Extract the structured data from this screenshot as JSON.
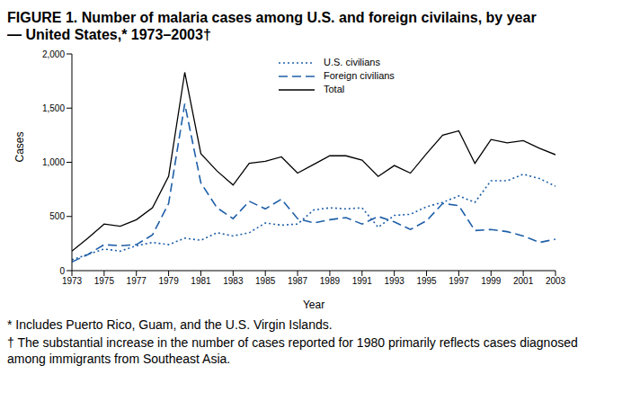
{
  "chart_data": {
    "type": "line",
    "title": "FIGURE 1. Number of malaria cases among U.S. and foreign civilains, by year — United States,* 1973–2003†",
    "x_label": "Year",
    "y_label": "Cases",
    "x": [
      1973,
      1974,
      1975,
      1976,
      1977,
      1978,
      1979,
      1980,
      1981,
      1982,
      1983,
      1984,
      1985,
      1986,
      1987,
      1988,
      1989,
      1990,
      1991,
      1992,
      1993,
      1994,
      1995,
      1996,
      1997,
      1998,
      1999,
      2000,
      2001,
      2002,
      2003
    ],
    "series": [
      {
        "name": "U.S. civilians",
        "color": "#1f5fa8",
        "line_style": "dotted",
        "values": [
          100,
          150,
          200,
          180,
          230,
          260,
          240,
          300,
          280,
          350,
          320,
          350,
          440,
          420,
          430,
          560,
          580,
          570,
          580,
          400,
          510,
          520,
          590,
          630,
          690,
          630,
          830,
          830,
          890,
          850,
          780
        ]
      },
      {
        "name": "Foreign civilians",
        "color": "#1f5fa8",
        "line_style": "dashed",
        "values": [
          80,
          150,
          240,
          230,
          240,
          330,
          620,
          1540,
          810,
          580,
          480,
          640,
          570,
          660,
          480,
          440,
          470,
          490,
          430,
          500,
          450,
          380,
          460,
          620,
          600,
          370,
          380,
          360,
          320,
          260,
          290
        ]
      },
      {
        "name": "Total",
        "color": "#000000",
        "line_style": "solid",
        "values": [
          180,
          300,
          430,
          410,
          470,
          580,
          870,
          1830,
          1080,
          920,
          790,
          990,
          1010,
          1050,
          900,
          980,
          1060,
          1060,
          1020,
          870,
          970,
          900,
          1080,
          1250,
          1290,
          990,
          1210,
          1180,
          1200,
          1130,
          1070
        ]
      }
    ],
    "xlim": [
      1973,
      2003
    ],
    "xticks": [
      1973,
      1975,
      1977,
      1979,
      1981,
      1983,
      1985,
      1987,
      1989,
      1991,
      1993,
      1995,
      1997,
      1999,
      2001,
      2003
    ],
    "ylim": [
      0,
      2000
    ],
    "yticks": [
      0,
      500,
      {
        "value": 1000,
        "label": "1,000"
      },
      {
        "value": 1500,
        "label": "1,500"
      },
      {
        "value": 2000,
        "label": "2,000"
      }
    ],
    "legend": "top",
    "grid": false,
    "footnotes": [
      "* Includes Puerto Rico, Guam, and the U.S. Virgin Islands.",
      "† The substantial increase in the number of cases reported for 1980 primarily reflects cases diagnosed among immigrants from Southeast Asia."
    ]
  }
}
